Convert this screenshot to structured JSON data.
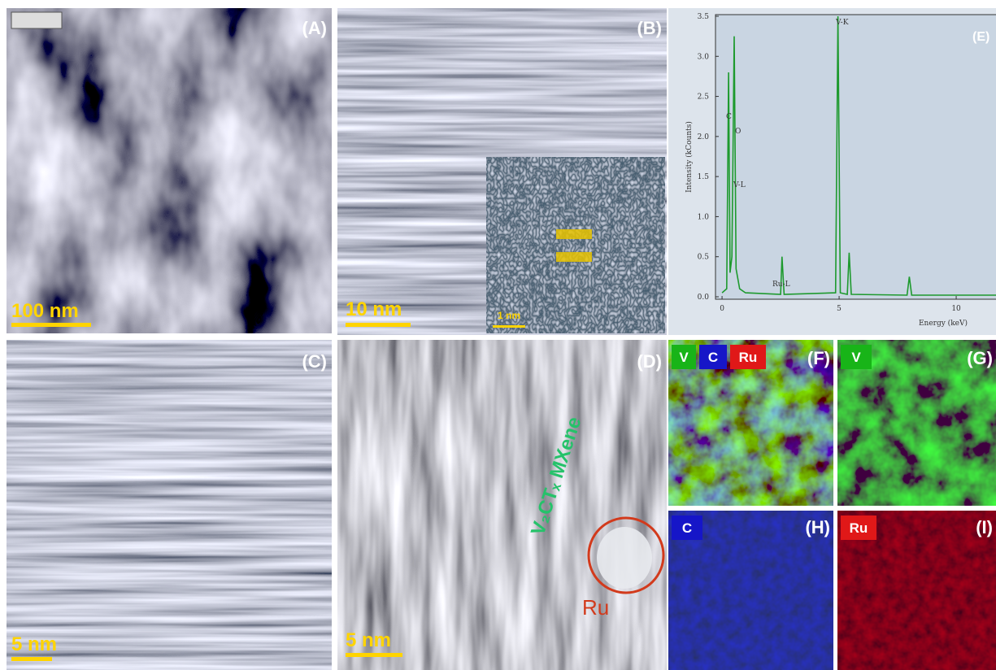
{
  "panels": {
    "a": {
      "label": "(A)",
      "scale_bar": "100 nm"
    },
    "b": {
      "label": "(B)",
      "scale_bar": "10 nm",
      "inset_scale_bar": "1 nm"
    },
    "c": {
      "label": "(C)",
      "scale_bar": "5 nm"
    },
    "d": {
      "label": "(D)",
      "scale_bar": "5 nm",
      "annotation": "V₂CTₓ MXene",
      "particle": "Ru"
    },
    "f": {
      "label": "(F)",
      "tags": [
        "V",
        "C",
        "Ru"
      ]
    },
    "g": {
      "label": "(G)",
      "tags": [
        "V"
      ]
    },
    "h": {
      "label": "(H)",
      "tags": [
        "C"
      ]
    },
    "i": {
      "label": "(I)",
      "tags": [
        "Ru"
      ]
    }
  },
  "chart_data": {
    "type": "line",
    "label": "(E)",
    "x_label": "Energy (keV)",
    "y_label": "Intensity (kCounts)",
    "x": [
      0,
      0.2,
      0.28,
      0.34,
      0.42,
      0.52,
      0.6,
      0.75,
      1.0,
      2.5,
      2.56,
      2.65,
      4.85,
      4.95,
      5.05,
      5.35,
      5.43,
      5.52,
      7.9,
      8.0,
      8.1,
      11.7
    ],
    "values": [
      0.05,
      0.1,
      2.8,
      0.3,
      0.5,
      3.25,
      0.35,
      0.1,
      0.05,
      0.03,
      0.5,
      0.03,
      0.05,
      3.5,
      0.05,
      0.03,
      0.55,
      0.03,
      0.02,
      0.25,
      0.02,
      0.02
    ],
    "color": "#1e9a2e",
    "peak_labels": [
      "V-K",
      "C",
      "O",
      "V-L",
      "Ru-L"
    ],
    "xlim": [
      -0.28,
      11.7
    ],
    "ylim": [
      0,
      3.5
    ],
    "xticks": [
      0,
      5,
      10
    ],
    "yticks": [
      {
        "value": 0,
        "label": "0.0"
      },
      {
        "value": 0.5,
        "label": "0.5"
      },
      {
        "value": 1,
        "label": "1.0"
      },
      {
        "value": 1.5,
        "label": "1.5"
      },
      {
        "value": 2,
        "label": "2.0"
      },
      {
        "value": 2.5,
        "label": "2.5"
      },
      {
        "value": 3,
        "label": "3.0"
      },
      {
        "value": 3.5,
        "label": "3.5"
      }
    ]
  }
}
